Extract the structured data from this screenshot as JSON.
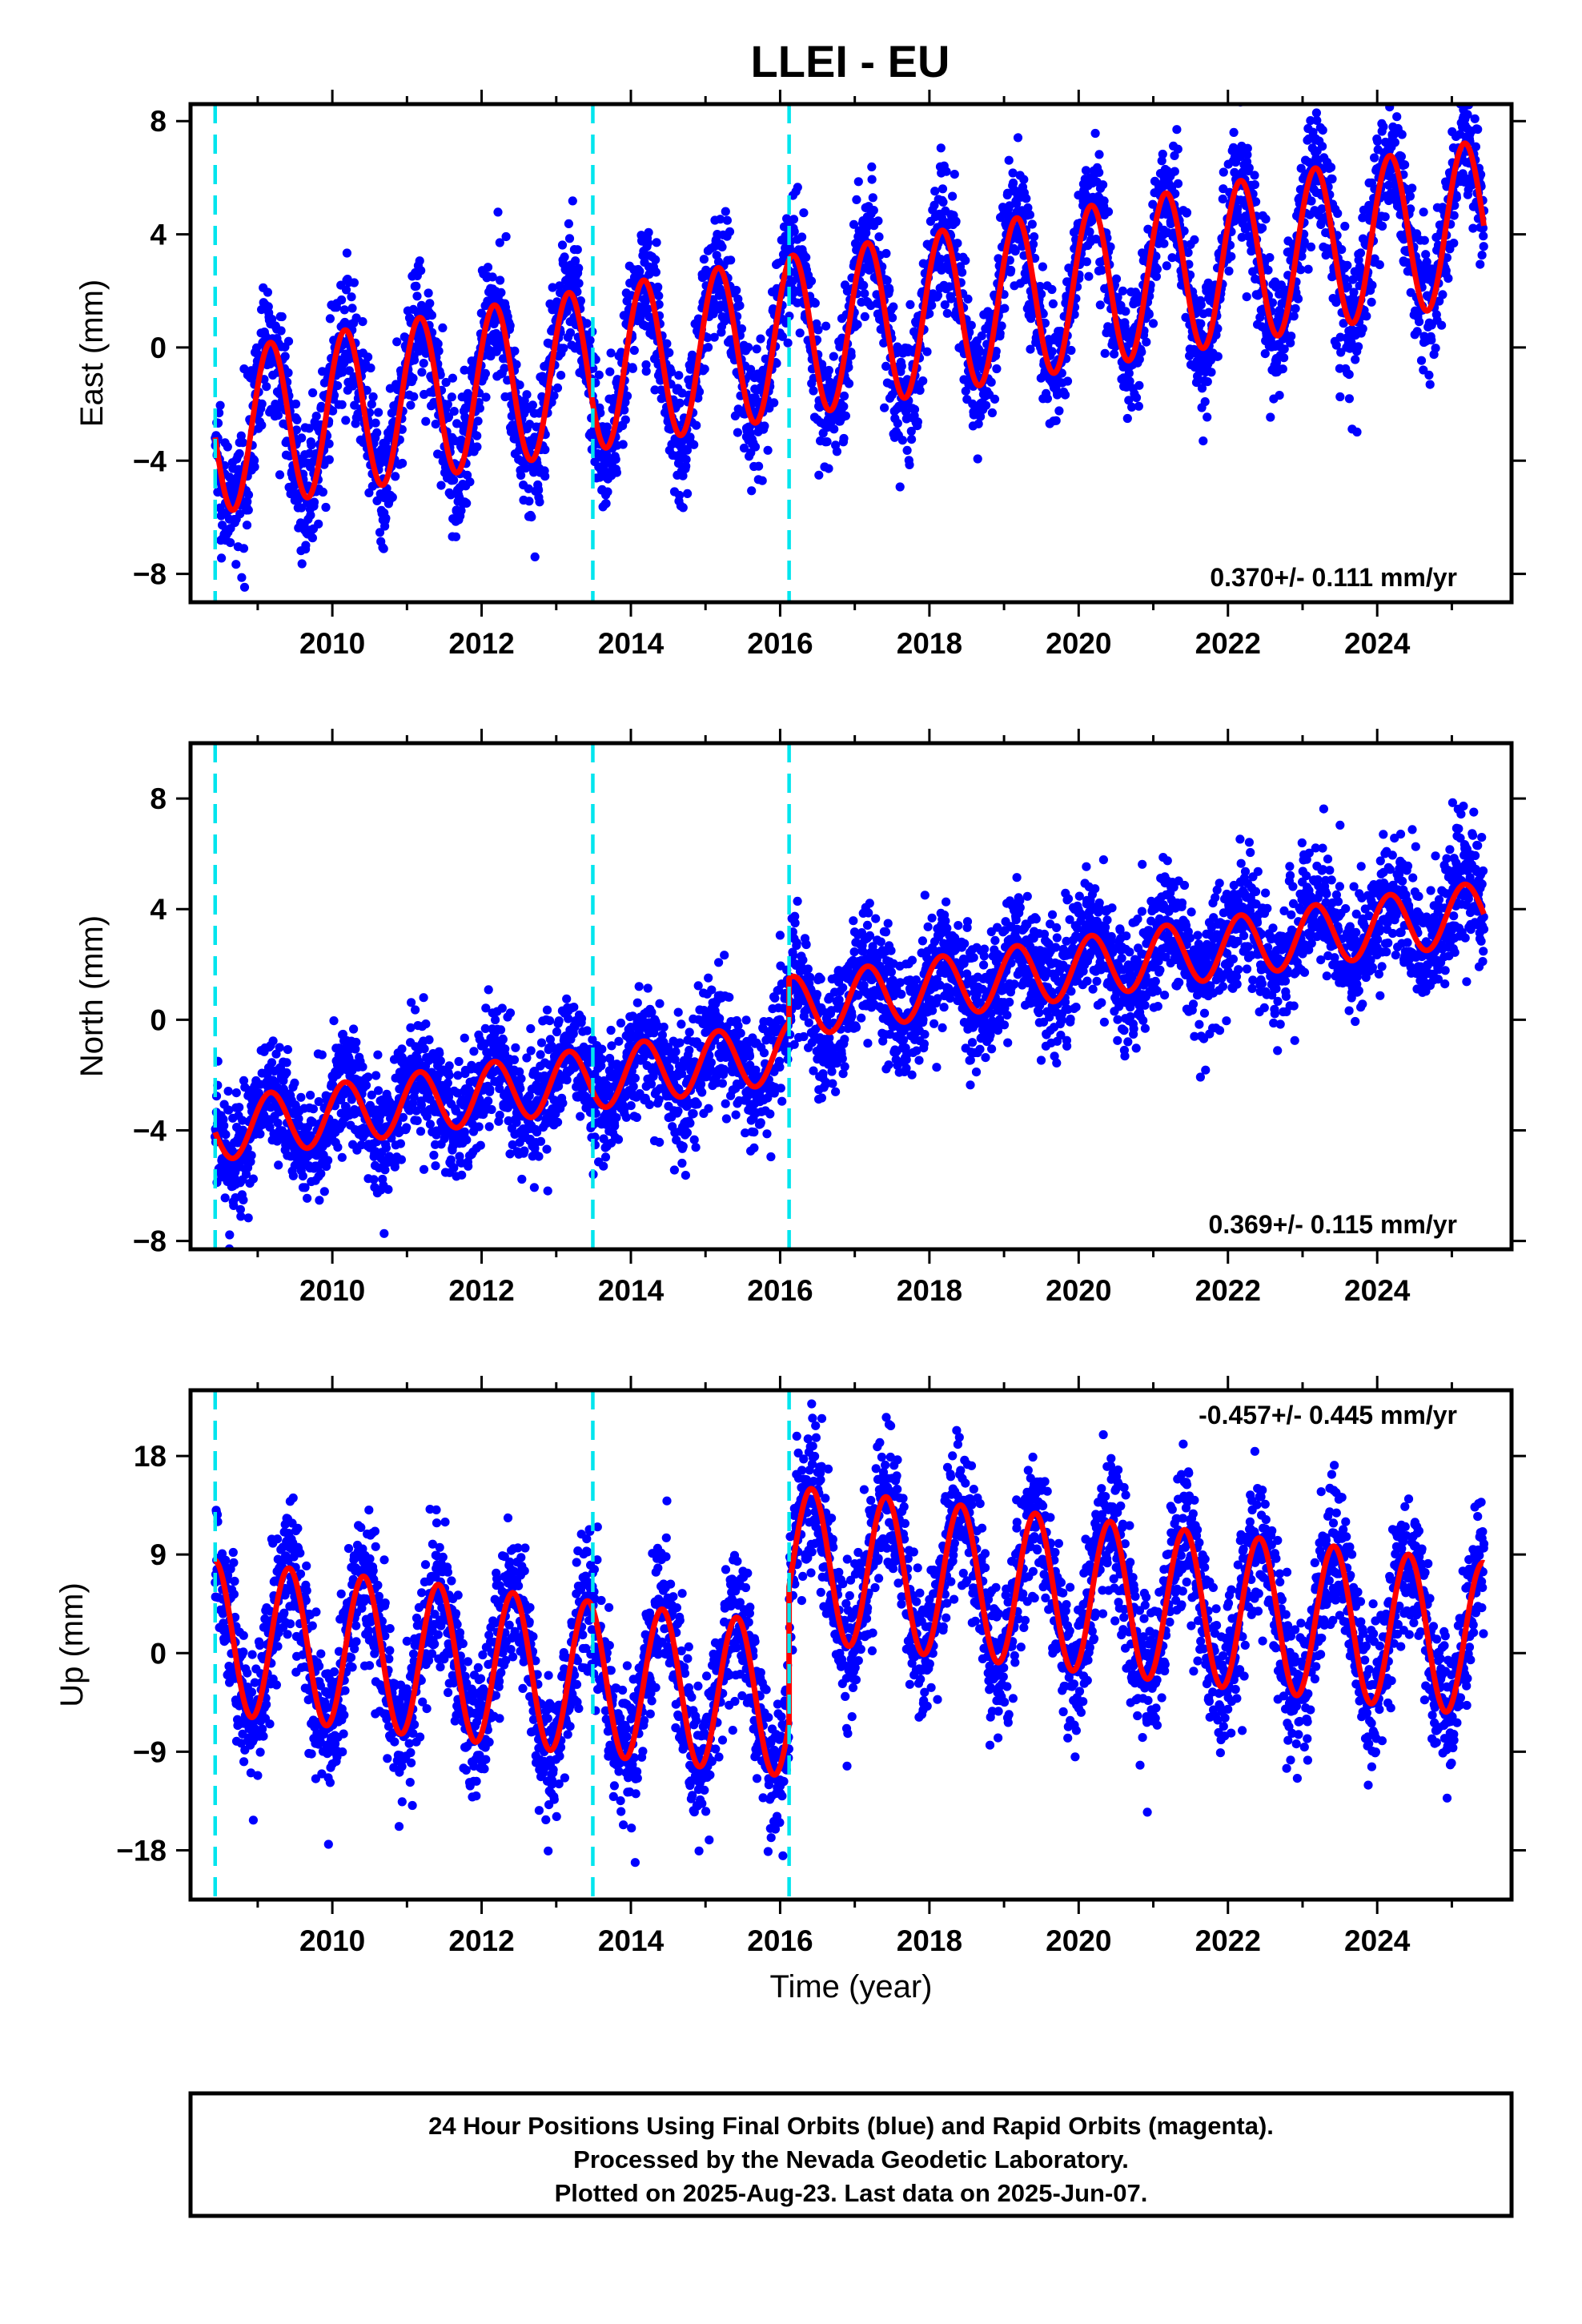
{
  "title": "LLEI - EU",
  "colors": {
    "points": "#0000ff",
    "model": "#ff0000",
    "offsets": "#00e5ee",
    "frame": "#000000"
  },
  "chart_data": [
    {
      "type": "scatter",
      "component": "east",
      "ylabel": "East (mm)",
      "xlabel": "",
      "xlim": [
        2008.1,
        2025.8
      ],
      "ylim": [
        -9,
        8.6
      ],
      "yticks": [
        -8,
        -4,
        0,
        4,
        8
      ],
      "xticks": [
        2010,
        2012,
        2014,
        2016,
        2018,
        2020,
        2022,
        2024
      ],
      "x_range": [
        2008.43,
        2025.43
      ],
      "offsets": [
        2008.43,
        2013.49,
        2016.12
      ],
      "rate_label": "0.370+/- 0.111 mm/yr",
      "rate_position": "bottom-right",
      "model": {
        "mean": 0.0,
        "trend_start": -3.0,
        "trend_slope": 0.44,
        "amplitude": 2.85,
        "phase": 2008.17,
        "steps": [],
        "noise": 1.15
      },
      "series": [
        {
          "name": "",
          "marker": "points"
        },
        {
          "name": "",
          "marker": "line"
        }
      ]
    },
    {
      "type": "scatter",
      "component": "north",
      "ylabel": "North (mm)",
      "xlabel": "",
      "xlim": [
        2008.1,
        2025.8
      ],
      "ylim": [
        -8.3,
        10
      ],
      "yticks": [
        -8,
        -4,
        0,
        4,
        8
      ],
      "xticks": [
        2010,
        2012,
        2014,
        2016,
        2018,
        2020,
        2022,
        2024
      ],
      "x_range": [
        2008.43,
        2025.43
      ],
      "offsets": [
        2008.43,
        2013.49,
        2016.12
      ],
      "rate_label": "0.369+/- 0.115 mm/yr",
      "rate_position": "bottom-right",
      "model": {
        "mean": 0.0,
        "trend_start": -4.0,
        "trend_slope": 0.37,
        "amplitude": 1.1,
        "phase": 2008.17,
        "steps": [
          {
            "x": 2016.12,
            "dy": 1.6
          }
        ],
        "noise": 1.1
      },
      "series": [
        {
          "name": "",
          "marker": "points"
        },
        {
          "name": "",
          "marker": "line"
        }
      ]
    },
    {
      "type": "scatter",
      "component": "up",
      "ylabel": "Up (mm)",
      "xlabel": "Time (year)",
      "xlim": [
        2008.1,
        2025.8
      ],
      "ylim": [
        -22.5,
        24
      ],
      "yticks": [
        -18,
        -9,
        0,
        9,
        18
      ],
      "xticks": [
        2010,
        2012,
        2014,
        2016,
        2018,
        2020,
        2022,
        2024
      ],
      "x_range": [
        2008.43,
        2025.43
      ],
      "offsets": [
        2008.43,
        2013.49,
        2016.12
      ],
      "rate_label": "-0.457+/- 0.445 mm/yr",
      "rate_position": "top-right",
      "model": {
        "mean": 0.0,
        "trend_start": 1.5,
        "trend_slope": -0.75,
        "amplitude": 7.0,
        "phase": 2008.42,
        "steps": [
          {
            "x": 2016.12,
            "dy": 12.5
          }
        ],
        "noise": 3.3
      },
      "series": [
        {
          "name": "",
          "marker": "points"
        },
        {
          "name": "",
          "marker": "line"
        }
      ]
    }
  ],
  "footer": {
    "line1": "24 Hour Positions Using Final Orbits (blue) and Rapid Orbits (magenta).",
    "line2": "Processed by the Nevada Geodetic Laboratory.",
    "line3": "Plotted on 2025-Aug-23. Last data on 2025-Jun-07."
  }
}
